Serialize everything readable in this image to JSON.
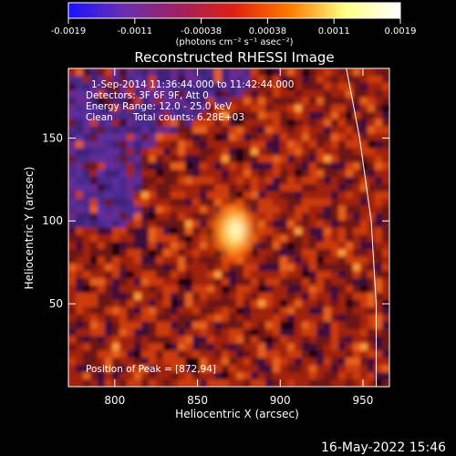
{
  "chart_data": {
    "type": "heatmap",
    "title": "Reconstructed RHESSI Image",
    "xlabel": "Heliocentric X (arcsec)",
    "ylabel": "Heliocentric Y (arcsec)",
    "xlim": [
      772,
      966
    ],
    "ylim": [
      0,
      192
    ],
    "xticks": [
      800,
      850,
      900,
      950
    ],
    "yticks": [
      50,
      100,
      150
    ],
    "colorbar": {
      "ticks": [
        "-0.0019",
        "-0.0011",
        "-0.00038",
        "0.00038",
        "0.0011",
        "0.0019"
      ],
      "range": [
        -0.0019,
        0.0019
      ],
      "unit_text": "(photons cm⁻² s⁻¹ asec⁻²)",
      "colors": [
        "#1a10ff",
        "#6a2fb0",
        "#a02060",
        "#e02010",
        "#ff7a00",
        "#ffff80",
        "#ffffff"
      ]
    },
    "annotations": {
      "time_range": "1-Sep-2014 11:36:44.000 to 11:42:44.000",
      "detectors": "Detectors: 3F 6F 9F, Att 0",
      "energy": "Energy Range: 12.0 - 25.0 keV",
      "method": "Clean",
      "total_counts": "Total counts: 6.28E+03",
      "peak": "Position of Peak = [872,94]"
    },
    "peak_position": [
      872,
      94
    ],
    "limb_curve": [
      [
        940,
        192
      ],
      [
        948,
        150
      ],
      [
        955,
        100
      ],
      [
        958,
        50
      ],
      [
        958,
        0
      ]
    ],
    "grid": false
  },
  "footer": {
    "timestamp": "16-May-2022 15:46"
  }
}
